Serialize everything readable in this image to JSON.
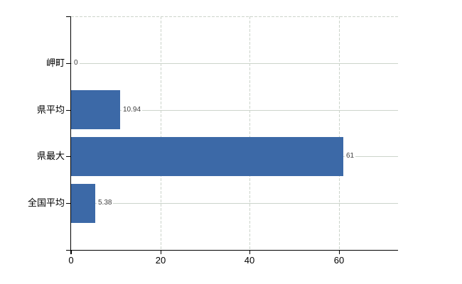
{
  "chart_data": {
    "type": "bar",
    "orientation": "horizontal",
    "title": "",
    "xlabel": "",
    "ylabel": "",
    "categories": [
      "岬町",
      "県平均",
      "県最大",
      "全国平均"
    ],
    "values": [
      0,
      10.94,
      61,
      5.38
    ],
    "value_labels": [
      "0",
      "10.94",
      "61",
      "5.38"
    ],
    "x_ticks": [
      0,
      20,
      40,
      60
    ],
    "x_tick_labels": [
      "0",
      "20",
      "40",
      "60"
    ],
    "xlim": [
      0,
      73.2
    ],
    "legend": "none",
    "grid": {
      "vertical_style": "dashed",
      "horizontal_style": "solid",
      "top_border_style": "dashed"
    }
  },
  "colors": {
    "background": "#ffffff",
    "bar": "#3c69a7",
    "gridline": "#ccd4cb",
    "axis": "#000000",
    "category_label": "#000000",
    "tick_label": "#000000",
    "value_label": "#3f3f3f"
  }
}
